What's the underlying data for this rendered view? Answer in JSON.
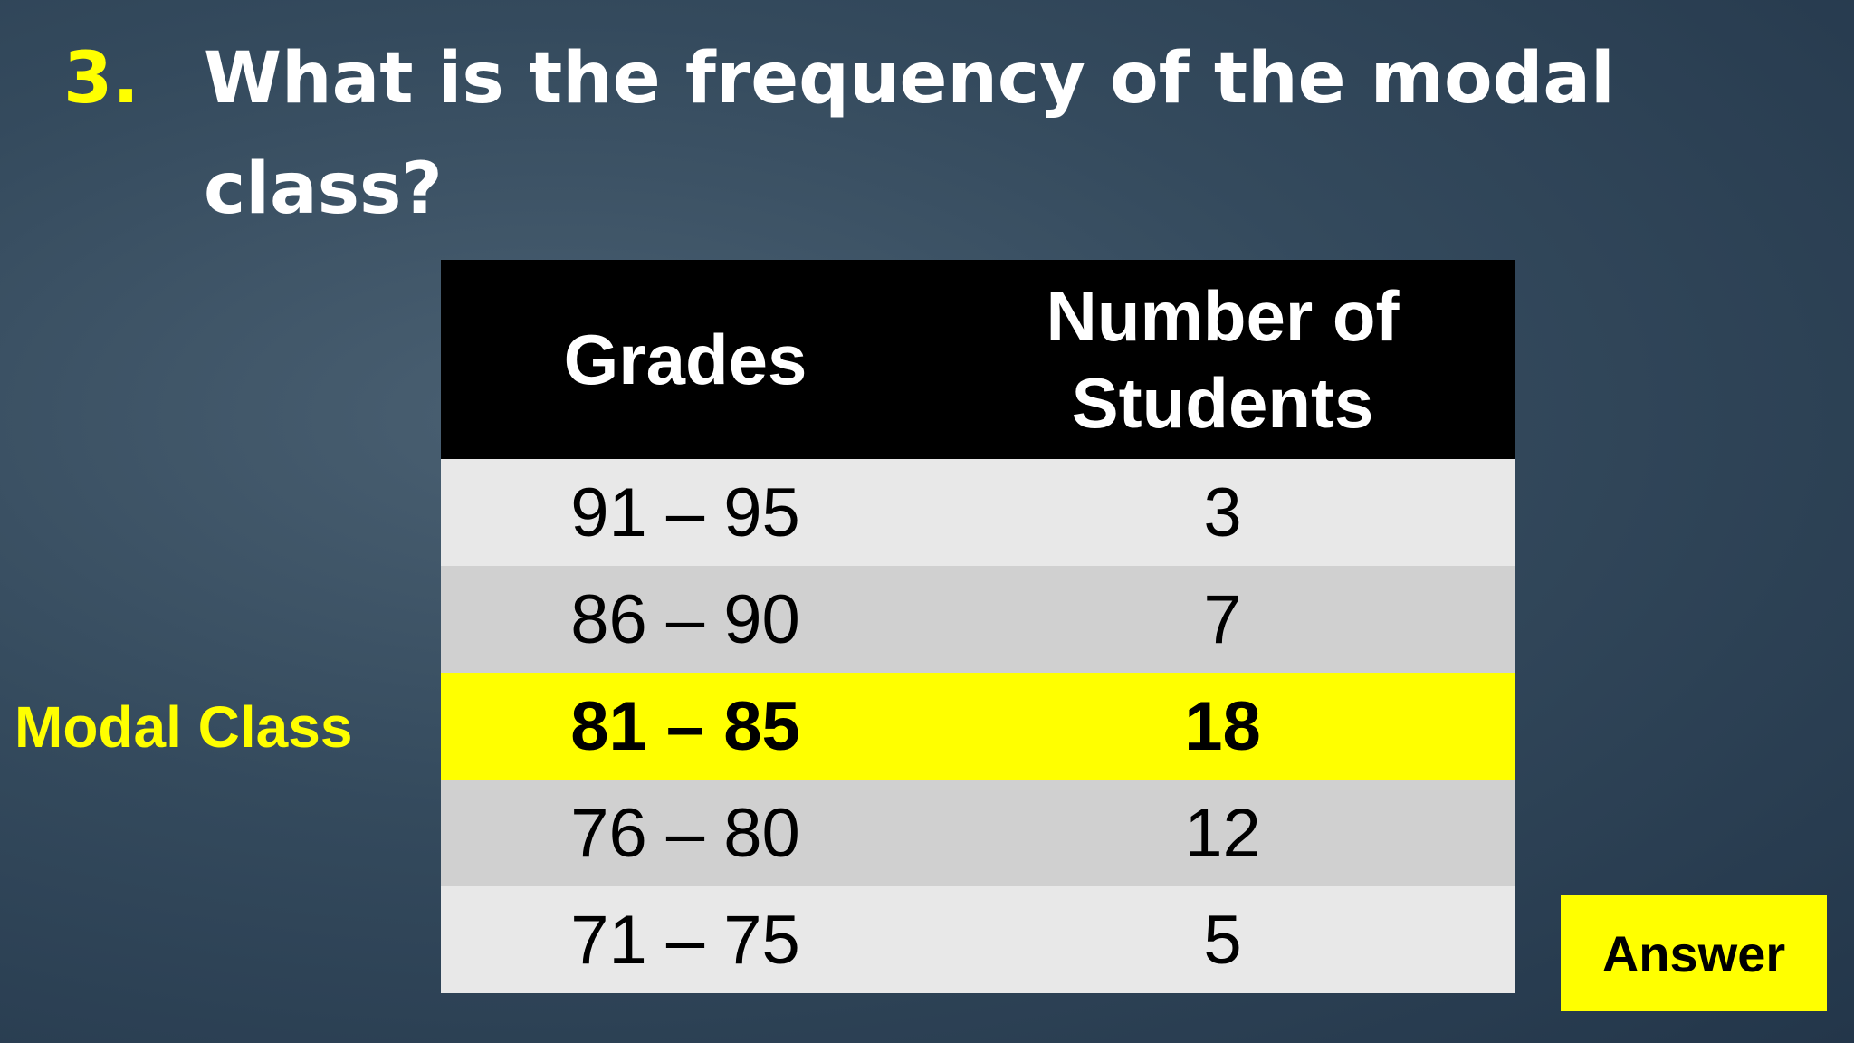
{
  "question": {
    "number": "3.",
    "text_line1": "What is the frequency of the modal",
    "text_line2": "class?"
  },
  "table": {
    "header": [
      "Grades",
      "Number of Students"
    ],
    "rows": [
      [
        "91 – 95",
        "3"
      ],
      [
        "86 – 90",
        "7"
      ],
      [
        "81 – 85",
        "18"
      ],
      [
        "76 – 80",
        "12"
      ],
      [
        "71 – 75",
        "5"
      ]
    ]
  },
  "modal_label": "Modal Class",
  "answer_button": "Answer"
}
